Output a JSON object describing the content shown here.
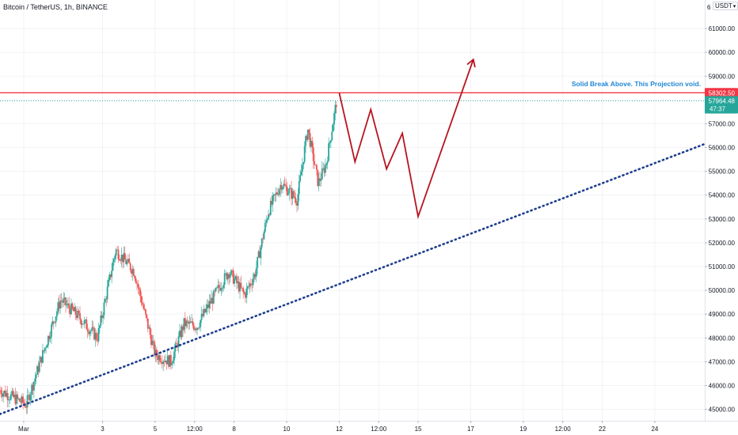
{
  "symbol_title": "Bitcoin / TetherUS, 1h, BINANCE",
  "currency": "USDT",
  "chart_data": {
    "type": "candlestick",
    "title": "Bitcoin / TetherUS, 1h, BINANCE",
    "price_axis": {
      "ticks": [
        45000,
        46000,
        47000,
        48000,
        49000,
        50000,
        51000,
        52000,
        53000,
        54000,
        55000,
        56000,
        57000,
        58000,
        59000,
        60000,
        61000
      ],
      "tick_labels": [
        "45000.00",
        "46000.00",
        "47000.00",
        "48000.00",
        "49000.00",
        "50000.00",
        "51000.00",
        "52000.00",
        "53000.00",
        "54000.00",
        "55000.00",
        "56000.00",
        "57000.00",
        "58000.00",
        "59000.00",
        "60000.00",
        "61000.00"
      ],
      "range": [
        44520,
        62200
      ],
      "top_label_partial": "6"
    },
    "time_axis": {
      "labels": [
        "Mar",
        "3",
        "5",
        "12:00",
        "8",
        "10",
        "12",
        "12:00",
        "15",
        "17",
        "19",
        "12:00",
        "22",
        "24"
      ],
      "day_index": [
        0,
        3,
        5,
        6.5,
        8,
        10,
        12,
        13.5,
        15,
        17,
        19,
        20.5,
        22,
        24
      ],
      "range": [
        -0.9,
        25.9
      ]
    },
    "price_key_points": [
      [
        -0.9,
        45800
      ],
      [
        0.1,
        45200
      ],
      [
        1.4,
        49600
      ],
      [
        2.0,
        49000
      ],
      [
        2.8,
        48000
      ],
      [
        3.5,
        51700
      ],
      [
        4.2,
        50800
      ],
      [
        5.0,
        47300
      ],
      [
        5.6,
        47000
      ],
      [
        6.1,
        48600
      ],
      [
        6.6,
        48500
      ],
      [
        7.1,
        49500
      ],
      [
        7.8,
        50800
      ],
      [
        8.4,
        49800
      ],
      [
        8.8,
        50700
      ],
      [
        9.3,
        53300
      ],
      [
        9.8,
        54500
      ],
      [
        10.4,
        53800
      ],
      [
        10.8,
        56800
      ],
      [
        11.2,
        54500
      ],
      [
        11.5,
        55300
      ],
      [
        11.9,
        57964
      ]
    ],
    "price_levels": [
      {
        "name": "resistance",
        "value": 58302.5,
        "color": "#f23645",
        "label": "58302.50"
      },
      {
        "name": "last-price",
        "value": 57964.48,
        "color": "#26a69a",
        "label": "57964.48",
        "countdown": "47:37"
      }
    ],
    "trendline": {
      "from": [
        -0.9,
        44800
      ],
      "to": [
        25.9,
        56150
      ],
      "color": "#1e3f8f",
      "style": "dotted"
    },
    "projection": {
      "color": "#b7141e",
      "points": [
        [
          12.0,
          58302
        ],
        [
          12.6,
          55400
        ],
        [
          13.2,
          57600
        ],
        [
          13.8,
          55100
        ],
        [
          14.4,
          56600
        ],
        [
          15.0,
          53100
        ],
        [
          17.1,
          59700
        ]
      ]
    },
    "annotation": {
      "text": "Solid Break Above. This Projection void.",
      "color": "#1f87d6",
      "price": 58480
    },
    "colors": {
      "up": "#26a69a",
      "down": "#ef5350",
      "grid": "#f2f3f6",
      "text": "#131722"
    }
  }
}
